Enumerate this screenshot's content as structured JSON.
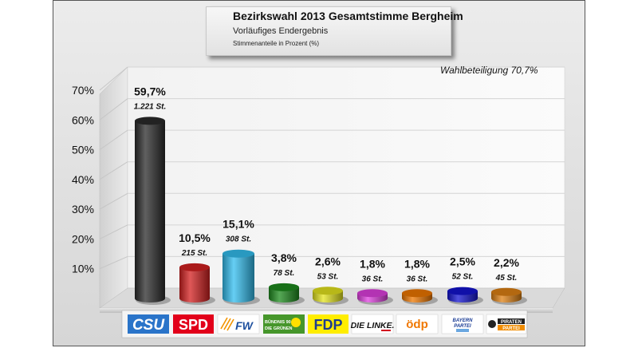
{
  "chart_data": {
    "type": "bar",
    "title": "Bezirkswahl 2013 Gesamtstimme Bergheim",
    "subtitle": "Vorläufiges Endergebnis",
    "note": "Stimmenanteile in Prozent (%)",
    "annotation": "Wahlbeteiligung 70,7%",
    "ylim": [
      0,
      70
    ],
    "yticks": [
      "10%",
      "20%",
      "30%",
      "40%",
      "50%",
      "60%",
      "70%"
    ],
    "categories": [
      "CSU",
      "SPD",
      "FW",
      "BÜNDNIS 90 DIE GRÜNEN",
      "FDP",
      "DIE LINKE.",
      "ödp",
      "BAYERN PARTEI",
      "PIRATEN PARTEI"
    ],
    "values": [
      59.7,
      10.5,
      15.1,
      3.8,
      2.6,
      1.8,
      1.8,
      2.5,
      2.2
    ],
    "value_labels": [
      "59,7%",
      "10,5%",
      "15,1%",
      "3,8%",
      "2,6%",
      "1,8%",
      "1,8%",
      "2,5%",
      "2,2%"
    ],
    "votes": [
      "1.221 St.",
      "215 St.",
      "308 St.",
      "78 St.",
      "53 St.",
      "36 St.",
      "36 St.",
      "52 St.",
      "45 St."
    ],
    "colors": [
      "#2b2b2b",
      "#d42020",
      "#33bff0",
      "#1e8c1e",
      "#e6e61e",
      "#e040e0",
      "#f07800",
      "#1414d2",
      "#e08214"
    ],
    "grid": true
  },
  "logos": [
    "CSU",
    "SPD",
    "FW",
    "BÜNDNIS 90",
    "DIE GRÜNEN",
    "FDP",
    "DIE LINKE.",
    "ödp",
    "BAYERN",
    "PARTEI",
    "PIRATEN",
    "PARTEI"
  ],
  "icons": [
    "csu-logo-icon",
    "spd-logo-icon",
    "fw-logo-icon",
    "gruene-logo-icon",
    "fdp-logo-icon",
    "linke-logo-icon",
    "oedp-logo-icon",
    "bayernpartei-logo-icon",
    "piraten-logo-icon"
  ]
}
